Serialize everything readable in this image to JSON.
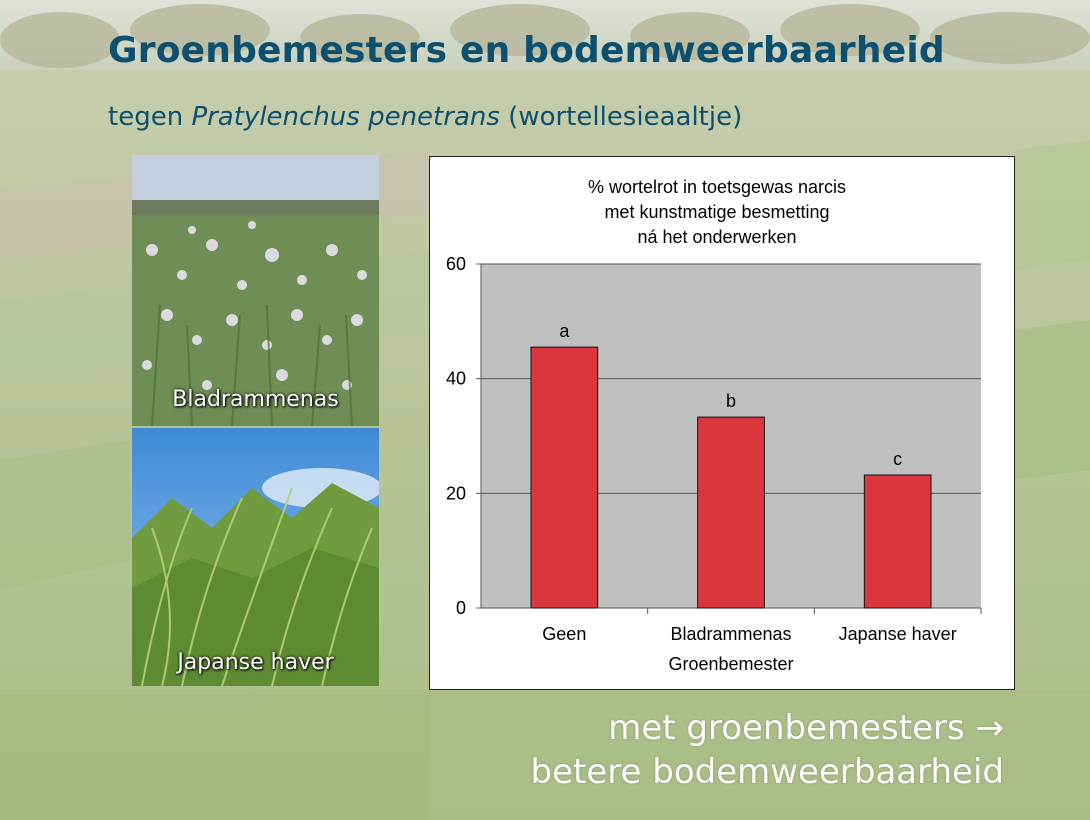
{
  "slide": {
    "title": "Groenbemesters en bodemweerbaarheid",
    "subtitle_prefix": "tegen ",
    "subtitle_italic": "Pratylenchus penetrans",
    "subtitle_suffix": " (wortellesieaaltje)",
    "conclusion_line1": "met groenbemesters →",
    "conclusion_line2": "betere bodemweerbaarheid"
  },
  "photos": [
    {
      "label": "Bladrammenas",
      "icon": "radish-field-photo"
    },
    {
      "label": "Japanse haver",
      "icon": "oat-field-photo"
    }
  ],
  "colors": {
    "title": "#0d4f6e",
    "bar": "#d9363e",
    "plot_bg": "#c0c0c0"
  },
  "chart_data": {
    "type": "bar",
    "title_lines": [
      "% wortelrot in toetsgewas narcis",
      "met kunstmatige besmetting",
      "ná het onderwerken"
    ],
    "categories": [
      "Geen",
      "Bladrammenas",
      "Japanse haver"
    ],
    "values": [
      45.5,
      33.3,
      23.2
    ],
    "data_labels": [
      "a",
      "b",
      "c"
    ],
    "xlabel": "Groenbemester",
    "ylabel": "",
    "ylim": [
      0,
      60
    ],
    "yticks": [
      0,
      20,
      40,
      60
    ],
    "grid": true,
    "legend": "none"
  }
}
